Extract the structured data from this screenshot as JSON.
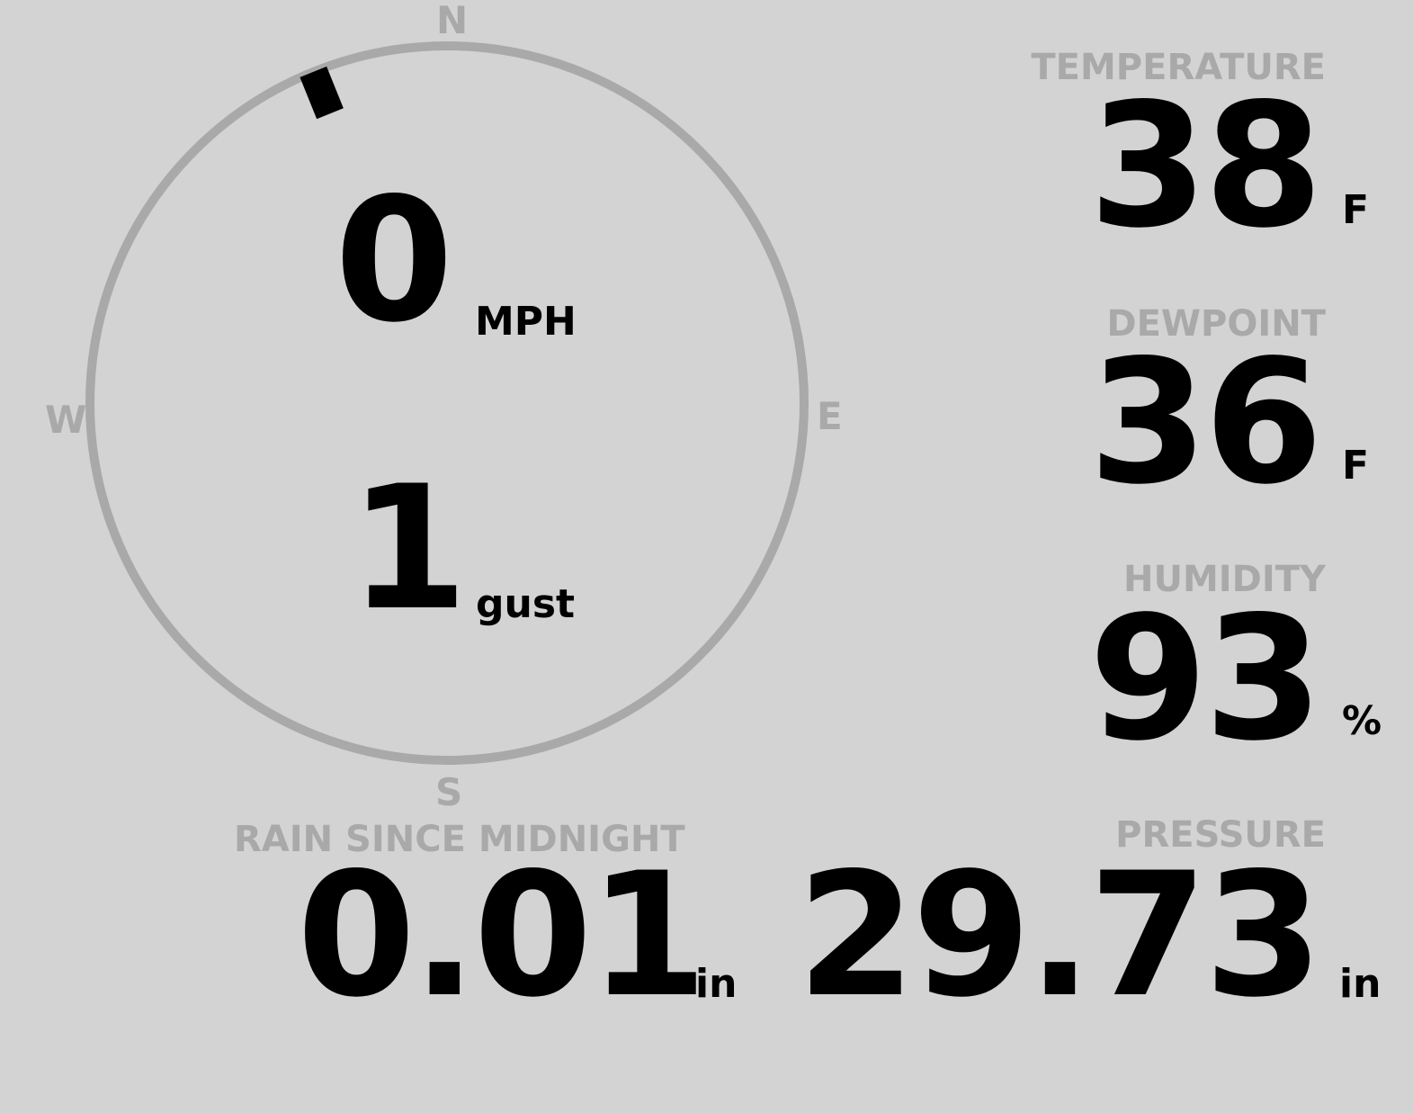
{
  "compass": {
    "north": "N",
    "east": "E",
    "south": "S",
    "west": "W",
    "wind_direction_deg": 338,
    "ring_color": "#a9a9a9"
  },
  "wind": {
    "speed": "0",
    "speed_unit": "MPH",
    "gust": "1",
    "gust_unit": "gust"
  },
  "temperature": {
    "label": "TEMPERATURE",
    "value": "38",
    "unit": "F"
  },
  "dewpoint": {
    "label": "DEWPOINT",
    "value": "36",
    "unit": "F"
  },
  "humidity": {
    "label": "HUMIDITY",
    "value": "93",
    "unit": "%"
  },
  "rain": {
    "label": "RAIN SINCE MIDNIGHT",
    "value": "0.01",
    "unit": "in"
  },
  "pressure": {
    "label": "PRESSURE",
    "value": "29.73",
    "unit": "in"
  },
  "colors": {
    "background": "#d3d3d3",
    "label": "#a9a9a9",
    "value": "#000000"
  }
}
